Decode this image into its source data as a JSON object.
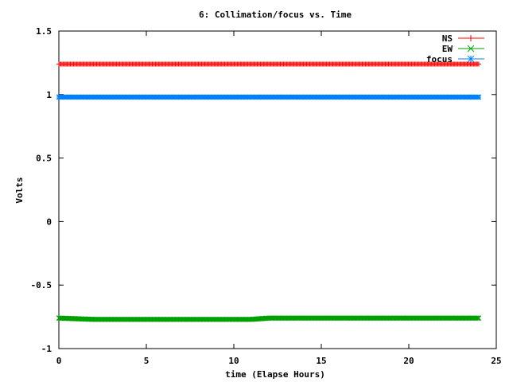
{
  "chart_data": {
    "type": "scatter",
    "title": "6: Collimation/focus vs. Time",
    "xlabel": "time (Elapse Hours)",
    "ylabel": "Volts",
    "xlim": [
      0,
      25
    ],
    "ylim": [
      -1,
      1.5
    ],
    "xticks": [
      0,
      5,
      10,
      15,
      20,
      25
    ],
    "yticks": [
      -1,
      -0.5,
      0,
      0.5,
      1,
      1.5
    ],
    "ytick_labels": [
      "-1",
      "-0.5",
      "0",
      "0.5",
      "1",
      "1.5"
    ],
    "grid": false,
    "legend_position": "top-right",
    "x_range_data": [
      0,
      24
    ],
    "series": [
      {
        "name": "NS",
        "color": "#ff0000",
        "marker": "plus",
        "x": [
          0,
          4,
          8,
          12,
          16,
          20,
          24
        ],
        "y": [
          1.24,
          1.24,
          1.24,
          1.24,
          1.24,
          1.24,
          1.24
        ]
      },
      {
        "name": "EW",
        "color": "#00a000",
        "marker": "cross",
        "x": [
          0,
          2,
          4,
          6,
          8,
          10,
          11,
          12,
          14,
          16,
          18,
          20,
          22,
          24
        ],
        "y": [
          -0.76,
          -0.77,
          -0.77,
          -0.77,
          -0.77,
          -0.77,
          -0.77,
          -0.76,
          -0.76,
          -0.76,
          -0.76,
          -0.76,
          -0.76,
          -0.76
        ]
      },
      {
        "name": "focus",
        "color": "#0080ff",
        "marker": "star",
        "x": [
          0,
          4,
          8,
          12,
          16,
          20,
          24
        ],
        "y": [
          0.98,
          0.98,
          0.98,
          0.98,
          0.98,
          0.98,
          0.98
        ]
      }
    ]
  }
}
